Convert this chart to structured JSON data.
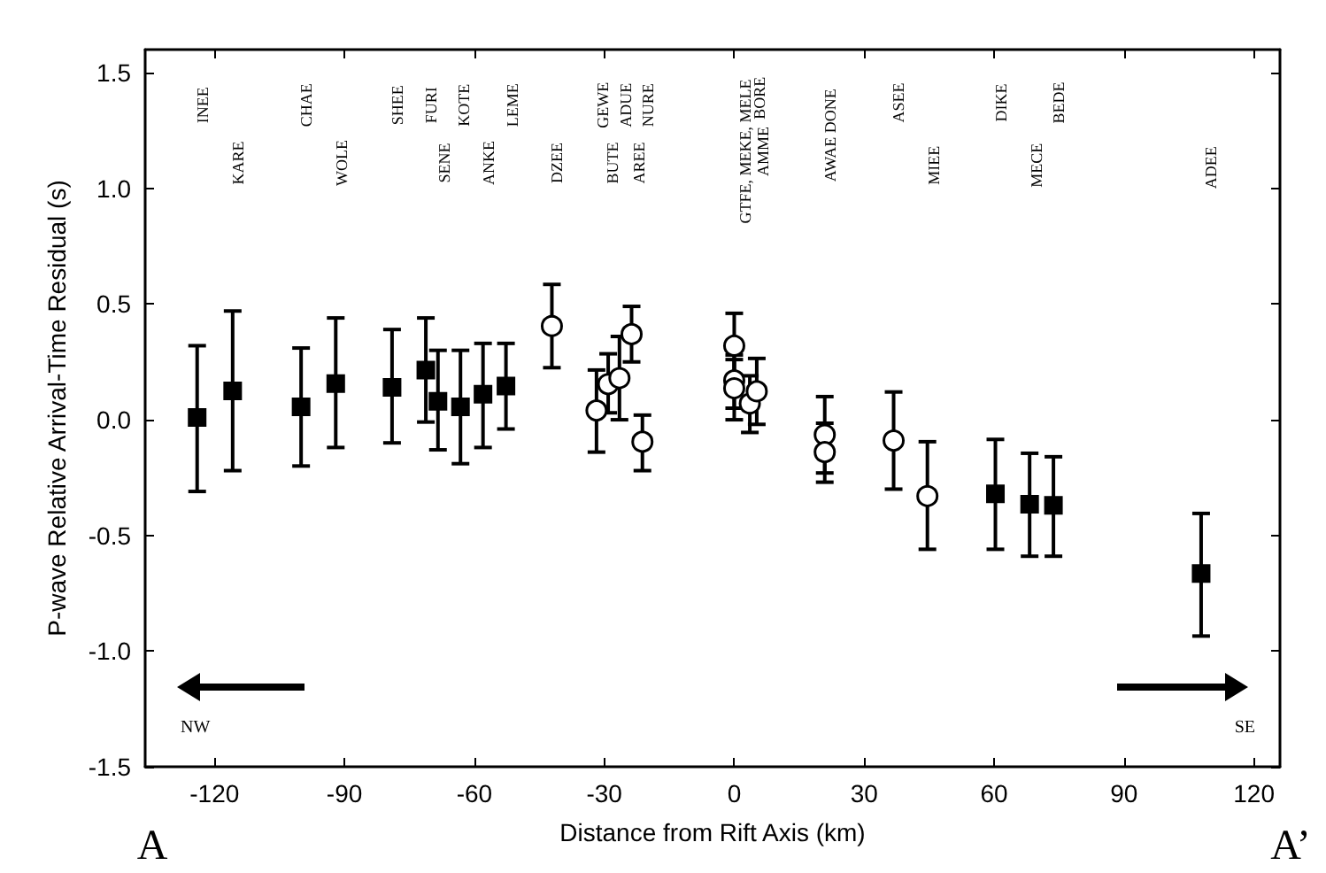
{
  "chart_data": {
    "type": "scatter",
    "xlabel": "Distance from Rift Axis (km)",
    "ylabel": "P-wave Relative Arrival-Time Residual (s)",
    "xlim": [
      -136,
      126
    ],
    "xticks": [
      -120,
      -90,
      -60,
      -30,
      0,
      30,
      60,
      90,
      120
    ],
    "ylim": [
      -1.5,
      1.6
    ],
    "yticks": [
      -1.5,
      {
        "value": -1,
        "label": "-1.0"
      },
      -0.5,
      {
        "value": 0,
        "label": "0.0"
      },
      0.5,
      {
        "value": 1,
        "label": "1.0"
      },
      1.5
    ],
    "grid": false,
    "series": [
      {
        "color": "#000000",
        "marker": "square",
        "x": [
          -124,
          -115.8,
          -100,
          -92,
          -79,
          -71.2,
          -68.4,
          -63.2,
          -58,
          -52.7,
          60.3,
          68.2,
          73.7,
          107.8
        ],
        "values": [
          0.01,
          0.125,
          0.056,
          0.156,
          0.14,
          0.215,
          0.08,
          0.056,
          0.11,
          0.146,
          -0.32,
          -0.365,
          -0.37,
          -0.665
        ],
        "errors": [
          [
            -0.31,
            0.32
          ],
          [
            -0.22,
            0.47
          ],
          [
            -0.2,
            0.31
          ],
          [
            -0.12,
            0.44
          ],
          [
            -0.1,
            0.39
          ],
          [
            -0.01,
            0.44
          ],
          [
            -0.13,
            0.3
          ],
          [
            -0.19,
            0.3
          ],
          [
            -0.12,
            0.33
          ],
          [
            -0.04,
            0.33
          ],
          [
            -0.56,
            -0.085
          ],
          [
            -0.59,
            -0.145
          ],
          [
            -0.59,
            -0.16
          ],
          [
            -0.935,
            -0.405
          ]
        ]
      },
      {
        "color": "#000000",
        "marker": "circle",
        "x": [
          -42.1,
          -31.8,
          -29.1,
          -26.5,
          -23.7,
          -21.2,
          0,
          0,
          0,
          3.6,
          5.2,
          20.9,
          20.9,
          36.8,
          44.6
        ],
        "values": [
          0.405,
          0.04,
          0.154,
          0.18,
          0.37,
          -0.095,
          0.32,
          0.17,
          0.136,
          0.07,
          0.123,
          -0.065,
          -0.14,
          -0.09,
          -0.33
        ],
        "errors": [
          [
            0.225,
            0.585
          ],
          [
            -0.14,
            0.215
          ],
          [
            0.03,
            0.285
          ],
          [
            0.0,
            0.36
          ],
          [
            0.25,
            0.49
          ],
          [
            -0.22,
            0.02
          ],
          [
            0.18,
            0.46
          ],
          [
            0.05,
            0.28
          ],
          [
            0.0,
            0.26
          ],
          [
            -0.055,
            0.19
          ],
          [
            -0.02,
            0.265
          ],
          [
            -0.27,
            0.1
          ],
          [
            -0.23,
            -0.015
          ],
          [
            -0.3,
            0.12
          ],
          [
            -0.56,
            -0.095
          ]
        ]
      }
    ],
    "annotations": [
      "INEE",
      "KARE",
      "CHAE",
      "WOLE",
      "SHEE",
      "FURI",
      "SENE",
      "KOTE",
      "ANKE",
      "LEME",
      "DZEE",
      "GEWE",
      "BUTE",
      "ADUE",
      "AREE",
      "NURE",
      "GTFE, MEKE, MELE",
      "BORE",
      "AMME",
      "AWAE DONE",
      "ASEE",
      "MIEE",
      "DIKE",
      "MECE",
      "BEDE",
      "ADEE",
      "NW",
      "SE",
      "A",
      "A’"
    ]
  }
}
